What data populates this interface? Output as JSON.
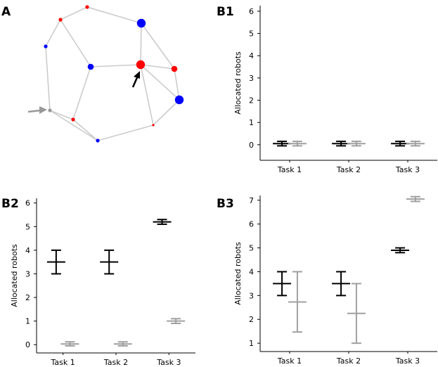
{
  "colors": {
    "series_black": "#000000",
    "series_gray": "#a0a0a0",
    "edge": "#cccccc",
    "node_red": "#ff0000",
    "node_blue": "#0000ff",
    "arrow_gray": "#999999"
  },
  "network": {
    "label": "A",
    "nodes": [
      {
        "id": "n1",
        "color": "red",
        "size": "small"
      },
      {
        "id": "n2",
        "color": "red",
        "size": "small"
      },
      {
        "id": "n3",
        "color": "blue",
        "size": "small"
      },
      {
        "id": "n4",
        "color": "blue",
        "size": "large"
      },
      {
        "id": "n5",
        "color": "blue",
        "size": "medium"
      },
      {
        "id": "n6",
        "color": "red",
        "size": "large",
        "highlight": "black-arrow"
      },
      {
        "id": "n7",
        "color": "red",
        "size": "medium"
      },
      {
        "id": "n8",
        "color": "blue",
        "size": "large"
      },
      {
        "id": "n9",
        "color": "gray",
        "size": "small",
        "highlight": "gray-arrow"
      },
      {
        "id": "n10",
        "color": "red",
        "size": "small"
      },
      {
        "id": "n11",
        "color": "red",
        "size": "tiny"
      },
      {
        "id": "n12",
        "color": "blue",
        "size": "small"
      }
    ],
    "edges": [
      [
        "n1",
        "n2"
      ],
      [
        "n1",
        "n4"
      ],
      [
        "n2",
        "n3"
      ],
      [
        "n2",
        "n5"
      ],
      [
        "n3",
        "n9"
      ],
      [
        "n4",
        "n6"
      ],
      [
        "n4",
        "n7"
      ],
      [
        "n6",
        "n5"
      ],
      [
        "n6",
        "n7"
      ],
      [
        "n6",
        "n8"
      ],
      [
        "n6",
        "n11"
      ],
      [
        "n7",
        "n8"
      ],
      [
        "n8",
        "n11"
      ],
      [
        "n5",
        "n10"
      ],
      [
        "n9",
        "n10"
      ],
      [
        "n10",
        "n12"
      ],
      [
        "n9",
        "n12"
      ],
      [
        "n12",
        "n11"
      ]
    ]
  },
  "chart_data": [
    {
      "id": "B1",
      "label": "B1",
      "type": "errorbar",
      "ylabel": "Allocated robots",
      "categories": [
        "Task 1",
        "Task 2",
        "Task 3"
      ],
      "ylim": [
        -0.7,
        6.25
      ],
      "yticks": [
        0,
        1,
        2,
        3,
        4,
        5,
        6
      ],
      "series": [
        {
          "name": "black",
          "color": "#000000",
          "values": [
            0.05,
            0.05,
            0.05
          ],
          "lower": [
            -0.05,
            -0.05,
            -0.05
          ],
          "upper": [
            0.15,
            0.15,
            0.15
          ]
        },
        {
          "name": "gray",
          "color": "#a0a0a0",
          "values": [
            0.05,
            0.05,
            0.05
          ],
          "lower": [
            -0.05,
            -0.05,
            -0.05
          ],
          "upper": [
            0.15,
            0.15,
            0.15
          ]
        }
      ]
    },
    {
      "id": "B2",
      "label": "B2",
      "type": "errorbar",
      "ylabel": "Allocated robots",
      "categories": [
        "Task 1",
        "Task 2",
        "Task 3"
      ],
      "ylim": [
        -0.35,
        6.2
      ],
      "yticks": [
        0,
        1,
        2,
        3,
        4,
        5,
        6
      ],
      "series": [
        {
          "name": "black",
          "color": "#000000",
          "values": [
            3.5,
            3.5,
            5.2
          ],
          "lower": [
            3.0,
            3.0,
            5.1
          ],
          "upper": [
            4.0,
            4.0,
            5.3
          ]
        },
        {
          "name": "gray",
          "color": "#a0a0a0",
          "values": [
            0.03,
            0.03,
            1.0
          ],
          "lower": [
            -0.05,
            -0.05,
            0.9
          ],
          "upper": [
            0.12,
            0.12,
            1.1
          ]
        }
      ]
    },
    {
      "id": "B3",
      "label": "B3",
      "type": "errorbar",
      "ylabel": "Allocated robots",
      "categories": [
        "Task 1",
        "Task 2",
        "Task 3"
      ],
      "ylim": [
        0.65,
        7.2
      ],
      "yticks": [
        1,
        2,
        3,
        4,
        5,
        6,
        7
      ],
      "series": [
        {
          "name": "black",
          "color": "#000000",
          "values": [
            3.5,
            3.5,
            4.9
          ],
          "lower": [
            3.0,
            3.0,
            4.8
          ],
          "upper": [
            4.0,
            4.0,
            5.0
          ]
        },
        {
          "name": "gray",
          "color": "#a0a0a0",
          "values": [
            2.73,
            2.25,
            7.05
          ],
          "lower": [
            1.47,
            1.0,
            6.95
          ],
          "upper": [
            4.0,
            3.5,
            7.15
          ]
        }
      ]
    }
  ]
}
